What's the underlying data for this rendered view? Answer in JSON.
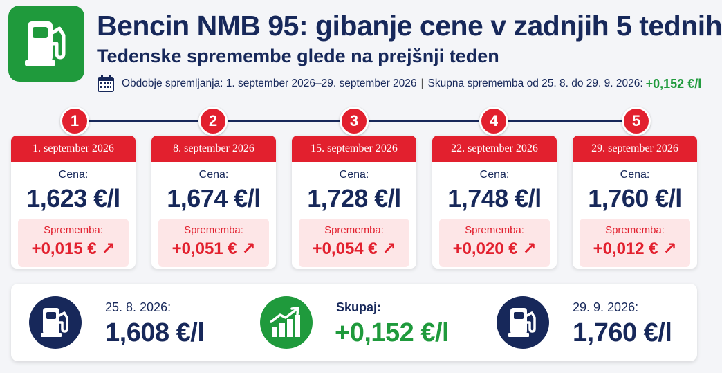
{
  "header": {
    "icon": "fuel-pump-icon",
    "title": "Bencin NMB 95: gibanje cene v zadnjih 5 tednih",
    "subtitle": "Tedenske spremembe glede na prejšnji teden",
    "period_label": "Obdobje spremljanja: 1. september 2026–29. september 2026",
    "separator": "|",
    "total_label": "Skupna sprememba od 25. 8. do 29. 9. 2026:",
    "total_value": "+0,152 €/l"
  },
  "weeks": [
    {
      "step": "1",
      "date": "1. september 2026",
      "price_label": "Cena:",
      "price": "1,623 €/l",
      "change_label": "Sprememba:",
      "change": "+0,015 € ↗"
    },
    {
      "step": "2",
      "date": "8. september 2026",
      "price_label": "Cena:",
      "price": "1,674 €/l",
      "change_label": "Sprememba:",
      "change": "+0,051 € ↗"
    },
    {
      "step": "3",
      "date": "15. september 2026",
      "price_label": "Cena:",
      "price": "1,728 €/l",
      "change_label": "Sprememba:",
      "change": "+0,054 € ↗"
    },
    {
      "step": "4",
      "date": "22. september 2026",
      "price_label": "Cena:",
      "price": "1,748 €/l",
      "change_label": "Sprememba:",
      "change": "+0,020 € ↗"
    },
    {
      "step": "5",
      "date": "29. september 2026",
      "price_label": "Cena:",
      "price": "1,760 €/l",
      "change_label": "Sprememba:",
      "change": "+0,012 € ↗"
    }
  ],
  "summary": {
    "start": {
      "label": "25. 8. 2026:",
      "value": "1,608 €/l",
      "icon": "fuel-pump-icon"
    },
    "total": {
      "label": "Skupaj:",
      "value": "+0,152 €/l",
      "icon": "growth-chart-icon"
    },
    "end": {
      "label": "29. 9. 2026:",
      "value": "1,760 €/l",
      "icon": "fuel-pump-icon"
    }
  },
  "colors": {
    "navy": "#17285a",
    "red": "#e2202e",
    "green": "#1f9a3c",
    "pink": "#fde6e7"
  }
}
